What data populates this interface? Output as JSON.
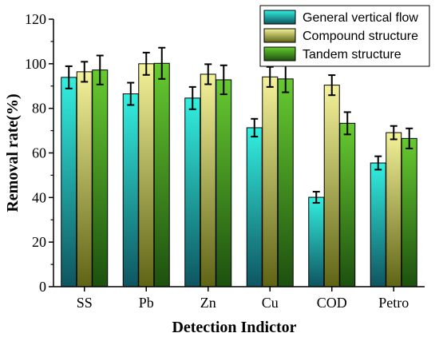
{
  "chart_data": {
    "type": "bar",
    "xlabel": "Detection Indictor",
    "ylabel": "Removal rate(%)",
    "ylim": [
      0,
      120
    ],
    "yticks": [
      0,
      20,
      40,
      60,
      80,
      100,
      120
    ],
    "categories": [
      "SS",
      "Pb",
      "Zn",
      "Cu",
      "COD",
      "Petro"
    ],
    "series": [
      {
        "name": "General vertical flow",
        "values": [
          93.9,
          86.5,
          84.6,
          71.3,
          40.1,
          55.5
        ],
        "errors": [
          5.0,
          5.0,
          5.0,
          4.0,
          2.5,
          3.0
        ]
      },
      {
        "name": "Compound structure",
        "values": [
          96.4,
          100.0,
          95.3,
          94.1,
          90.4,
          69.1
        ],
        "errors": [
          4.5,
          5.0,
          4.5,
          4.5,
          4.5,
          3.0
        ]
      },
      {
        "name": "Tandem structure",
        "values": [
          97.2,
          100.2,
          92.8,
          93.2,
          73.3,
          66.5
        ],
        "errors": [
          6.5,
          7.0,
          6.5,
          6.0,
          5.0,
          4.5
        ]
      }
    ],
    "colors": {
      "series0": {
        "top": "#33efe0",
        "bottom": "#0e5560"
      },
      "series1": {
        "top": "#f4f29a",
        "bottom": "#5f6415"
      },
      "series2": {
        "top": "#66ca30",
        "bottom": "#1d500f"
      }
    },
    "legend_position": "top-right",
    "grid": false
  }
}
